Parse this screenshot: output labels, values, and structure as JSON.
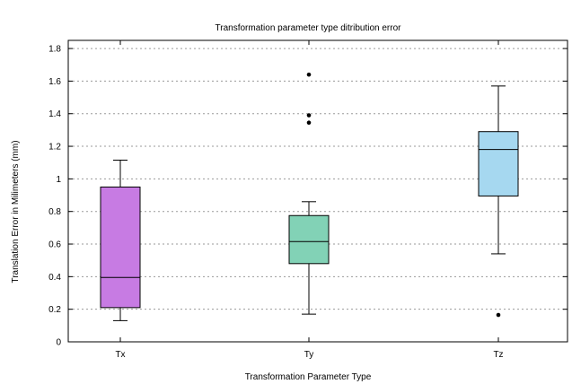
{
  "chart_data": {
    "type": "box",
    "title": "Transformation parameter type ditribution error",
    "xlabel": "Transformation Parameter Type",
    "ylabel": "Translation Error in Milimeters (mm)",
    "ylim": [
      0,
      1.85
    ],
    "yticks": [
      0,
      0.2,
      0.4,
      0.6,
      0.8,
      1,
      1.2,
      1.4,
      1.6,
      1.8
    ],
    "ytick_labels": [
      "0",
      "0.2",
      "0.4",
      "0.6",
      "0.8",
      "1",
      "1.2",
      "1.4",
      "1.6",
      "1.8"
    ],
    "grid": true,
    "categories": [
      "Tx",
      "Ty",
      "Tz"
    ],
    "boxes": [
      {
        "category": "Tx",
        "whisker_low": 0.13,
        "q1": 0.21,
        "median": 0.395,
        "q3": 0.95,
        "whisker_high": 1.115,
        "outliers": [],
        "color": "#c77be3"
      },
      {
        "category": "Ty",
        "whisker_low": 0.17,
        "q1": 0.48,
        "median": 0.615,
        "q3": 0.775,
        "whisker_high": 0.86,
        "outliers": [
          1.345,
          1.39,
          1.64
        ],
        "color": "#82d2b6"
      },
      {
        "category": "Tz",
        "whisker_low": 0.54,
        "q1": 0.895,
        "median": 1.18,
        "q3": 1.29,
        "whisker_high": 1.57,
        "outliers": [
          0.165
        ],
        "color": "#a6d8f0"
      }
    ]
  }
}
